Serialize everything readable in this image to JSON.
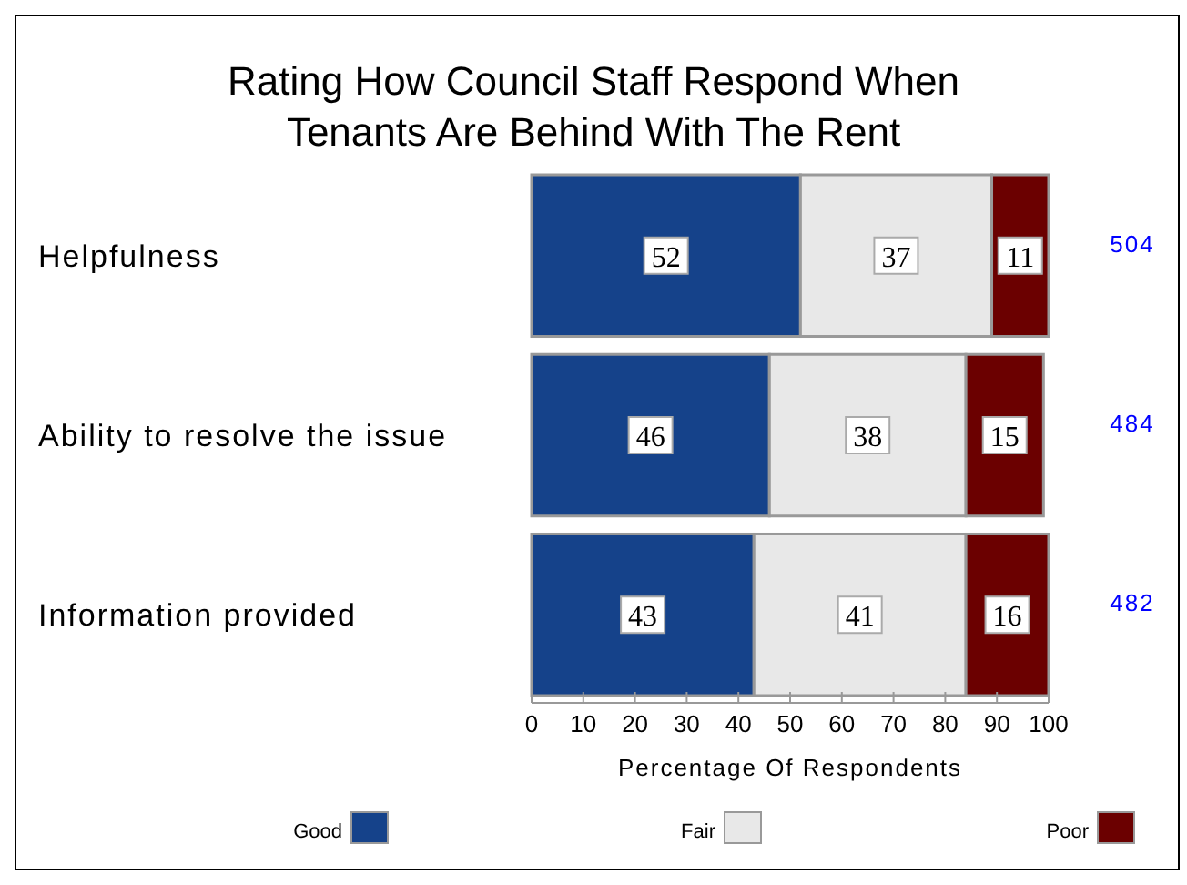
{
  "chart_data": {
    "type": "bar",
    "orientation": "horizontal",
    "stacked": true,
    "title": "Rating How Council Staff Respond When\nTenants Are Behind With The Rent",
    "xlabel": "Percentage Of Respondents",
    "categories": [
      "Helpfulness",
      "Ability to resolve the issue",
      "Information provided"
    ],
    "series": [
      {
        "name": "Good",
        "color": "#15428a",
        "values": [
          52,
          46,
          43
        ]
      },
      {
        "name": "Fair",
        "color": "#e8e8e8",
        "values": [
          37,
          38,
          41
        ]
      },
      {
        "name": "Poor",
        "color": "#6b0000",
        "values": [
          11,
          15,
          16
        ]
      }
    ],
    "xlim": [
      0,
      100
    ],
    "xticks": [
      0,
      10,
      20,
      30,
      40,
      50,
      60,
      70,
      80,
      90,
      100
    ],
    "data_labels": true,
    "legend": "bottom",
    "grid": false,
    "annotations": [
      "504",
      "484",
      "482"
    ]
  }
}
